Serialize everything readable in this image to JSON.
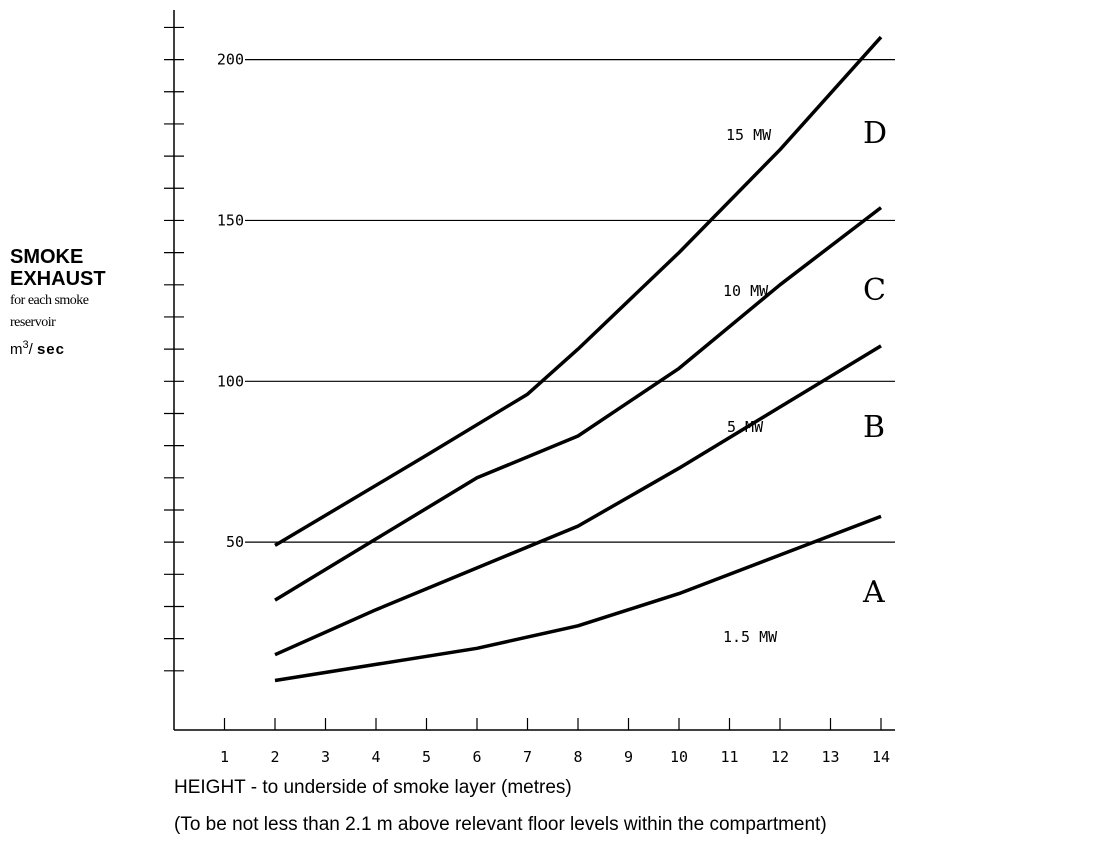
{
  "chart_data": {
    "type": "line",
    "ylabel": {
      "line1": "SMOKE",
      "line2": "EXHAUST",
      "line3": "for each smoke",
      "line4": "reservoir",
      "unit_base": "m",
      "unit_exp": "3",
      "unit_rest": "/ ",
      "unit_bold": "sec"
    },
    "xlabel": "HEIGHT - to underside of smoke layer (metres)",
    "note": "(To be not less than 2.1 m above relevant floor levels within the compartment)",
    "xlim": [
      0,
      14
    ],
    "ylim": [
      0,
      210
    ],
    "x_ticks": [
      1,
      2,
      3,
      4,
      5,
      6,
      7,
      8,
      9,
      10,
      11,
      12,
      13,
      14
    ],
    "y_ticks_labeled": [
      50,
      100,
      150,
      200
    ],
    "y_tick_step": 10,
    "grid": "horizontal at 50, 100, 150, 200",
    "series": [
      {
        "name": "1.5 MW",
        "curve": "A",
        "x": [
          2,
          4,
          6,
          8,
          9,
          10,
          12,
          14
        ],
        "y": [
          7,
          12,
          17,
          24,
          29,
          34,
          46,
          58
        ]
      },
      {
        "name": "5 MW",
        "curve": "B",
        "x": [
          2,
          4,
          6,
          8,
          10,
          12,
          14
        ],
        "y": [
          15,
          29,
          42,
          55,
          73,
          92,
          111
        ]
      },
      {
        "name": "10 MW",
        "curve": "C",
        "x": [
          2,
          4,
          6,
          8,
          10,
          12,
          14
        ],
        "y": [
          32,
          51,
          70,
          83,
          104,
          130,
          154
        ]
      },
      {
        "name": "15 MW",
        "curve": "D",
        "x": [
          2,
          5,
          7,
          8,
          10,
          12,
          14
        ],
        "y": [
          49,
          77,
          96,
          110,
          140,
          172,
          207
        ]
      }
    ]
  }
}
